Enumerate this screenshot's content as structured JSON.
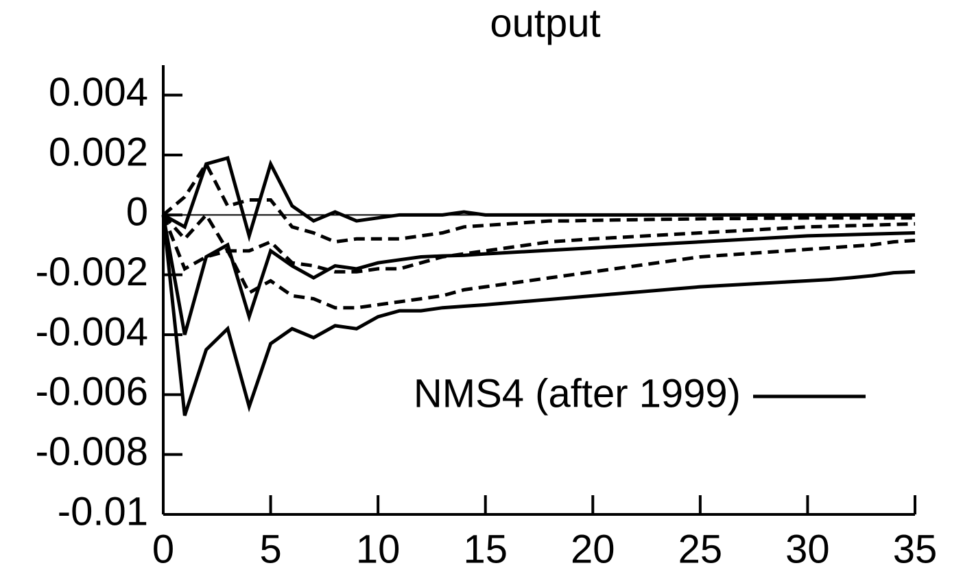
{
  "chart_data": {
    "type": "line",
    "title": "output",
    "x": [
      0,
      1,
      2,
      3,
      4,
      5,
      6,
      7,
      8,
      9,
      10,
      11,
      12,
      13,
      14,
      15,
      16,
      17,
      18,
      19,
      20,
      21,
      22,
      23,
      24,
      25,
      26,
      27,
      28,
      29,
      30,
      31,
      32,
      33,
      34,
      35
    ],
    "xlim": [
      0,
      35
    ],
    "xticks": [
      0,
      5,
      10,
      15,
      20,
      25,
      30,
      35
    ],
    "ylim": [
      -0.01,
      0.005
    ],
    "yticks": [
      -0.01,
      -0.008,
      -0.006,
      -0.004,
      -0.002,
      0,
      0.002,
      0.004
    ],
    "zero_line": true,
    "series": [
      {
        "color": "#000000",
        "style": "solid",
        "values": [
          0,
          -0.0004,
          0.0017,
          0.0019,
          -0.0007,
          0.0017,
          0.0003,
          -0.0002,
          0.0001,
          -0.0002,
          -0.0001,
          0,
          0,
          0,
          0.0001,
          0,
          0,
          0,
          0,
          0,
          0,
          0,
          0,
          0,
          0,
          0,
          0,
          0,
          0,
          0,
          0,
          0,
          0,
          0,
          0,
          0
        ]
      },
      {
        "name": "NMS4 (after 1999)",
        "color": "#000000",
        "style": "solid",
        "values": [
          0,
          -0.004,
          -0.0014,
          -0.001,
          -0.0034,
          -0.0012,
          -0.0017,
          -0.0021,
          -0.0017,
          -0.0018,
          -0.0016,
          -0.0015,
          -0.0014,
          -0.00137,
          -0.00135,
          -0.0013,
          -0.00126,
          -0.00122,
          -0.00118,
          -0.00114,
          -0.0011,
          -0.00106,
          -0.00102,
          -0.00098,
          -0.00094,
          -0.0009,
          -0.00086,
          -0.00082,
          -0.00078,
          -0.00074,
          -0.0007,
          -0.00068,
          -0.00066,
          -0.00064,
          -0.00062,
          -0.0006
        ]
      },
      {
        "color": "#000000",
        "style": "solid",
        "values": [
          0,
          -0.0067,
          -0.0045,
          -0.0038,
          -0.0064,
          -0.0043,
          -0.0038,
          -0.0041,
          -0.0037,
          -0.0038,
          -0.0034,
          -0.0032,
          -0.0032,
          -0.0031,
          -0.00305,
          -0.003,
          -0.00294,
          -0.00288,
          -0.00282,
          -0.00276,
          -0.0027,
          -0.00264,
          -0.00258,
          -0.00252,
          -0.00246,
          -0.0024,
          -0.00236,
          -0.00232,
          -0.00228,
          -0.00224,
          -0.0022,
          -0.00216,
          -0.0021,
          -0.00203,
          -0.00193,
          -0.0019
        ]
      },
      {
        "color": "#000000",
        "style": "dashed",
        "values": [
          0,
          0.0006,
          0.0017,
          0.0003,
          0.0005,
          0.0005,
          -0.0004,
          -0.0006,
          -0.0009,
          -0.0008,
          -0.0008,
          -0.0008,
          -0.0007,
          -0.0006,
          -0.0004,
          -0.00035,
          -0.0003,
          -0.00025,
          -0.0002,
          -0.0002,
          -0.00018,
          -0.00017,
          -0.00016,
          -0.00015,
          -0.00014,
          -0.00013,
          -0.00012,
          -0.00012,
          -0.00011,
          -0.00011,
          -0.0001,
          -0.0001,
          -0.0001,
          -0.0001,
          -0.0001,
          -0.0001
        ]
      },
      {
        "color": "#000000",
        "style": "dashed",
        "values": [
          0,
          -0.0018,
          -0.0014,
          -0.0012,
          -0.0012,
          -0.0009,
          -0.0016,
          -0.0017,
          -0.0019,
          -0.0019,
          -0.0018,
          -0.0018,
          -0.0016,
          -0.0014,
          -0.0013,
          -0.0012,
          -0.0011,
          -0.001,
          -0.0009,
          -0.00085,
          -0.0008,
          -0.00076,
          -0.00072,
          -0.00068,
          -0.00064,
          -0.0006,
          -0.00056,
          -0.00052,
          -0.00048,
          -0.00044,
          -0.0004,
          -0.00038,
          -0.00036,
          -0.00034,
          -0.00032,
          -0.0003
        ]
      },
      {
        "color": "#000000",
        "style": "dashed",
        "values": [
          0,
          -0.0008,
          0,
          -0.0012,
          -0.0026,
          -0.0022,
          -0.0027,
          -0.0028,
          -0.0031,
          -0.0031,
          -0.003,
          -0.0029,
          -0.0028,
          -0.0027,
          -0.0025,
          -0.0024,
          -0.0023,
          -0.0022,
          -0.0021,
          -0.002,
          -0.0019,
          -0.0018,
          -0.0017,
          -0.0016,
          -0.0015,
          -0.0014,
          -0.00135,
          -0.0013,
          -0.00125,
          -0.0012,
          -0.00115,
          -0.0011,
          -0.00105,
          -0.001,
          -0.0009,
          -0.00085
        ]
      }
    ]
  }
}
